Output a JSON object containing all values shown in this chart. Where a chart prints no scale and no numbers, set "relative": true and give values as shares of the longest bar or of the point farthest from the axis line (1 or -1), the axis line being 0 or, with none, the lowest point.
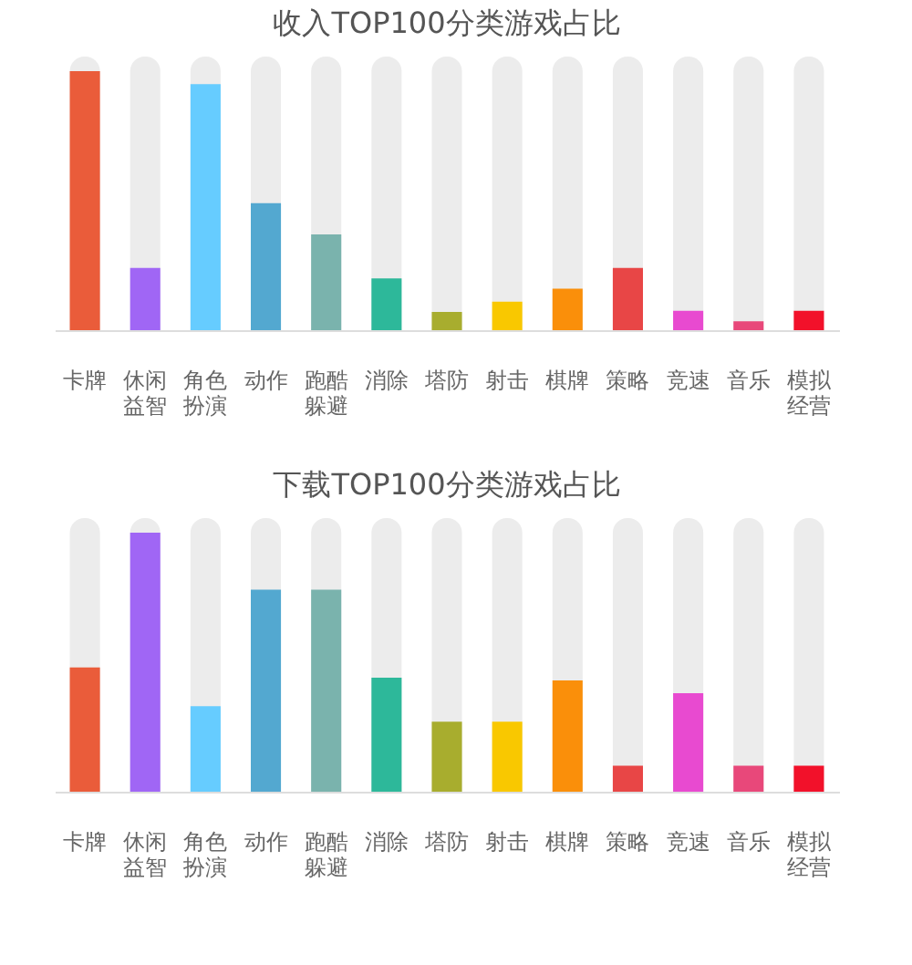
{
  "chart_data": [
    {
      "type": "bar",
      "title": "收入TOP100分类游戏占比",
      "relative": true,
      "categories": [
        "卡牌",
        "休闲益智",
        "角色扮演",
        "动作",
        "跑酷躲避",
        "消除",
        "塔防",
        "射击",
        "棋牌",
        "策略",
        "竞速",
        "音乐",
        "模拟经营"
      ],
      "values": [
        1,
        0.24,
        0.95,
        0.49,
        0.37,
        0.2,
        0.07,
        0.11,
        0.16,
        0.24,
        0.075,
        0.034,
        0.075
      ],
      "colors": [
        "#ea5c3a",
        "#a066f5",
        "#66ccff",
        "#53a8d0",
        "#7ab3ad",
        "#2db89a",
        "#a8ad2e",
        "#f9c800",
        "#fa8f0a",
        "#e84646",
        "#e84ad0",
        "#e8487a",
        "#f2112a"
      ]
    },
    {
      "type": "bar",
      "title": "下载TOP100分类游戏占比",
      "relative": true,
      "categories": [
        "卡牌",
        "休闲益智",
        "角色扮演",
        "动作",
        "跑酷躲避",
        "消除",
        "塔防",
        "射击",
        "棋牌",
        "策略",
        "竞速",
        "音乐",
        "模拟经营"
      ],
      "values": [
        0.48,
        1,
        0.33,
        0.78,
        0.78,
        0.44,
        0.27,
        0.27,
        0.43,
        0.1,
        0.38,
        0.1,
        0.1
      ],
      "colors": [
        "#ea5c3a",
        "#a066f5",
        "#66ccff",
        "#53a8d0",
        "#7ab3ad",
        "#2db89a",
        "#a8ad2e",
        "#f9c800",
        "#fa8f0a",
        "#e84646",
        "#e84ad0",
        "#e8487a",
        "#f2112a"
      ]
    }
  ]
}
